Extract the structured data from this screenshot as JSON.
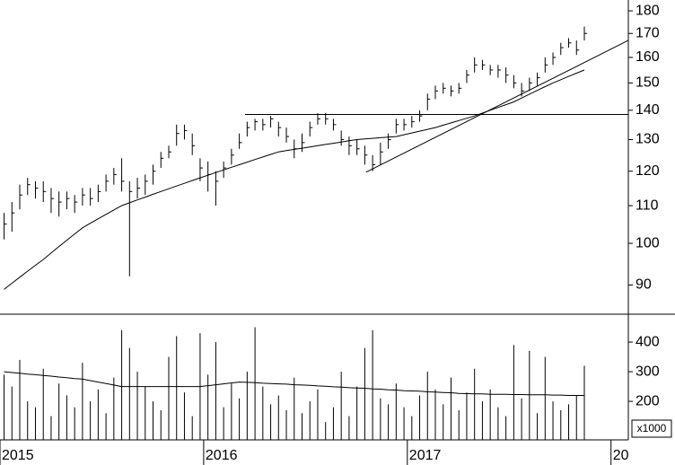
{
  "chart_data": {
    "type": "ohlc",
    "log_scale": true,
    "color": "#000000",
    "xlim": [
      2015,
      2018.085
    ],
    "xticks": [
      2015,
      2016,
      2017,
      {
        "value": 2018,
        "label": "20"
      }
    ],
    "ylim": [
      83.6,
      185
    ],
    "yticks": [
      90,
      100,
      110,
      120,
      130,
      140,
      150,
      160,
      170,
      180
    ],
    "x": [
      2015.02,
      2015.0585,
      2015.097,
      2015.1355,
      2015.174,
      2015.2125,
      2015.251,
      2015.2895,
      2015.328,
      2015.3665,
      2015.405,
      2015.4435,
      2015.482,
      2015.5205,
      2015.559,
      2015.5975,
      2015.636,
      2015.6745,
      2015.713,
      2015.7515,
      2015.79,
      2015.8285,
      2015.867,
      2015.9055,
      2015.944,
      2015.9825,
      2016.021,
      2016.0595,
      2016.098,
      2016.1365,
      2016.175,
      2016.2135,
      2016.252,
      2016.2905,
      2016.329,
      2016.3675,
      2016.406,
      2016.4445,
      2016.483,
      2016.5215,
      2016.56,
      2016.5985,
      2016.637,
      2016.6755,
      2016.714,
      2016.7525,
      2016.791,
      2016.8295,
      2016.868,
      2016.9065,
      2016.945,
      2016.9835,
      2017.022,
      2017.0605,
      2017.099,
      2017.1375,
      2017.176,
      2017.2145,
      2017.253,
      2017.2915,
      2017.33,
      2017.3685,
      2017.407,
      2017.4455,
      2017.484,
      2017.5225,
      2017.561,
      2017.5995,
      2017.638,
      2017.6765,
      2017.715,
      2017.7535,
      2017.792,
      2017.8305,
      2017.869
    ],
    "high": [
      108,
      111,
      116,
      118,
      117,
      117,
      115,
      114,
      114,
      113,
      115,
      115,
      116,
      119,
      121,
      124,
      117,
      118,
      119,
      122,
      126,
      128,
      135,
      135,
      132,
      124,
      123,
      120,
      123,
      127,
      132,
      136,
      137,
      137,
      138,
      136,
      134,
      130,
      132,
      136,
      139,
      139,
      137,
      133,
      131,
      130,
      128,
      125,
      129,
      132,
      137,
      137,
      138,
      140,
      146,
      149,
      150,
      149,
      150,
      155,
      160,
      159,
      157,
      157,
      156,
      153,
      150,
      152,
      154,
      160,
      162,
      166,
      168,
      167,
      173
    ],
    "low": [
      101,
      103,
      109,
      113,
      112,
      111,
      108,
      107,
      109,
      108,
      110,
      110,
      111,
      114,
      116,
      114,
      92,
      112,
      113,
      116,
      121,
      124,
      128,
      130,
      125,
      117,
      114,
      110,
      118,
      122,
      127,
      131,
      133,
      133,
      134,
      131,
      129,
      124,
      126,
      131,
      135,
      135,
      133,
      128,
      125,
      125,
      122,
      120,
      122,
      127,
      132,
      133,
      134,
      136,
      140,
      144,
      146,
      145,
      146,
      150,
      154,
      155,
      153,
      152,
      150,
      148,
      145,
      147,
      149,
      154,
      157,
      161,
      164,
      161,
      167
    ],
    "close": [
      105,
      108,
      113,
      116,
      115,
      114,
      112,
      111,
      112,
      111,
      113,
      112,
      114,
      117,
      119,
      117,
      114,
      115,
      117,
      120,
      124,
      126,
      132,
      133,
      128,
      121,
      119,
      117,
      121,
      125,
      129,
      134,
      136,
      135,
      137,
      134,
      131,
      127,
      129,
      134,
      137,
      137,
      135,
      130,
      128,
      127,
      125,
      122,
      126,
      130,
      135,
      135,
      136,
      138,
      144,
      147,
      148,
      147,
      148,
      153,
      157,
      157,
      155,
      155,
      153,
      150,
      147,
      150,
      152,
      157,
      160,
      164,
      166,
      163,
      170
    ],
    "ma": [
      89,
      90.4,
      91.8,
      93.2,
      94.6,
      96,
      97.6,
      99.2,
      100.8,
      102.4,
      104,
      105.2,
      106.4,
      107.6,
      108.8,
      110,
      110.8,
      111.6,
      112.4,
      113.2,
      114,
      114.8,
      115.6,
      116.4,
      117.2,
      118,
      118.8,
      119.6,
      120.4,
      121.2,
      122,
      122.8,
      123.6,
      124.4,
      125.2,
      126,
      126.4,
      126.8,
      127.2,
      127.6,
      128,
      128.4,
      128.8,
      129.2,
      129.6,
      130,
      130.2,
      130.4,
      130.6,
      130.8,
      131,
      131.6,
      132.2,
      132.8,
      133.4,
      134,
      134.8,
      135.6,
      136.4,
      137.2,
      138,
      139,
      140,
      141,
      142,
      143,
      144.4,
      145.8,
      147.2,
      148.6,
      150,
      151.25,
      152.5,
      153.75,
      155
    ],
    "trendlines": [
      {
        "x": [
          2016.203,
          2018.084
        ],
        "y": [
          138.5,
          138.5
        ]
      },
      {
        "x": [
          2016.797,
          2018.084
        ],
        "y": [
          119.7,
          167.0
        ]
      }
    ],
    "volume": {
      "unit_label": "x1000",
      "ylim": [
        70,
        494
      ],
      "yticks": [
        200,
        300,
        400
      ],
      "values": [
        290,
        250,
        340,
        200,
        180,
        310,
        150,
        260,
        220,
        180,
        330,
        200,
        240,
        160,
        280,
        440,
        380,
        300,
        250,
        200,
        170,
        350,
        420,
        230,
        150,
        430,
        290,
        400,
        180,
        260,
        210,
        300,
        450,
        250,
        190,
        220,
        170,
        280,
        160,
        200,
        240,
        130,
        180,
        300,
        150,
        250,
        380,
        440,
        210,
        190,
        260,
        180,
        150,
        220,
        300,
        240,
        190,
        280,
        170,
        230,
        310,
        200,
        240,
        180,
        150,
        390,
        210,
        370,
        160,
        350,
        200,
        170,
        190,
        220,
        320
      ],
      "ma": [
        300,
        297,
        295,
        292,
        290,
        287,
        285,
        282,
        280,
        277,
        275,
        270,
        265,
        260,
        255,
        250,
        250,
        250,
        250,
        250,
        250,
        250,
        250,
        250,
        250,
        250,
        253,
        256,
        259,
        262,
        265,
        264,
        263,
        261,
        260,
        259,
        258,
        256,
        255,
        254,
        252,
        251,
        249,
        248,
        246,
        245,
        244,
        242,
        241,
        239,
        238,
        236,
        235,
        234,
        232,
        231,
        230,
        229,
        227,
        226,
        225,
        225,
        224,
        224,
        224,
        223,
        223,
        222,
        222,
        222,
        221,
        221,
        220,
        220,
        220
      ]
    }
  }
}
